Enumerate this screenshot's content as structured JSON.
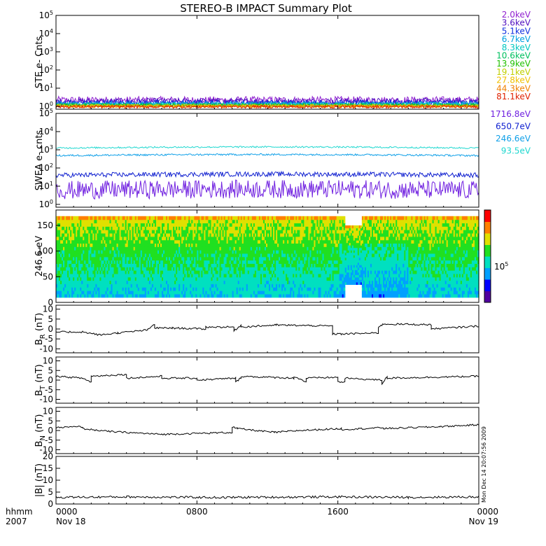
{
  "figure": {
    "title": "STEREO-B IMPACT Summary Plot",
    "stamp": "Mon Dec 14 20:07:56 2009",
    "time_row_label": "hhmm",
    "year_label": "2007",
    "time_ticks": [
      "0000",
      "0800",
      "1600",
      "0000"
    ],
    "date_ticks": [
      "Nov 18",
      "",
      "",
      "Nov 19"
    ]
  },
  "chart_data": [
    {
      "type": "line",
      "ylabel": "STE e- Cnts",
      "yscale": "log",
      "ylim": [
        0.7,
        100000
      ],
      "yticks": [
        {
          "base": "10",
          "exp": "0"
        },
        {
          "base": "10",
          "exp": "1"
        },
        {
          "base": "10",
          "exp": "2"
        },
        {
          "base": "10",
          "exp": "3"
        },
        {
          "base": "10",
          "exp": "4"
        },
        {
          "base": "10",
          "exp": "5"
        }
      ],
      "series": [
        {
          "name": "2.0keV",
          "color": "#9020d0",
          "level": 2.2,
          "spread": 1.6
        },
        {
          "name": "3.6keV",
          "color": "#5010c0",
          "level": 1.9,
          "spread": 1.5
        },
        {
          "name": "5.1keV",
          "color": "#1030e0",
          "level": 1.6,
          "spread": 1.4
        },
        {
          "name": "6.7keV",
          "color": "#00a0e0",
          "level": 1.4,
          "spread": 1.3
        },
        {
          "name": "8.3keV",
          "color": "#00c8c0",
          "level": 1.3,
          "spread": 1.3
        },
        {
          "name": "10.6keV",
          "color": "#00c060",
          "level": 1.2,
          "spread": 1.25
        },
        {
          "name": "13.9keV",
          "color": "#20c000",
          "level": 1.15,
          "spread": 1.2
        },
        {
          "name": "19.1keV",
          "color": "#c0d000",
          "level": 1.1,
          "spread": 1.2
        },
        {
          "name": "27.8keV",
          "color": "#f0c000",
          "level": 1.05,
          "spread": 1.2
        },
        {
          "name": "44.3keV",
          "color": "#f08000",
          "level": 1.0,
          "spread": 1.2
        },
        {
          "name": "81.1keV",
          "color": "#e02000",
          "level": 0.95,
          "spread": 1.2
        }
      ]
    },
    {
      "type": "line",
      "ylabel": "SWEA e- cnts",
      "yscale": "log",
      "ylim": [
        0.7,
        100000
      ],
      "yticks": [
        {
          "base": "10",
          "exp": "0"
        },
        {
          "base": "10",
          "exp": "1"
        },
        {
          "base": "10",
          "exp": "2"
        },
        {
          "base": "10",
          "exp": "3"
        },
        {
          "base": "10",
          "exp": "4"
        },
        {
          "base": "10",
          "exp": "5"
        }
      ],
      "series": [
        {
          "name": "1716.8eV",
          "color": "#7020e0",
          "level": 6,
          "spread": 3.2
        },
        {
          "name": "650.7eV",
          "color": "#1020d0",
          "level": 40,
          "spread": 1.35
        },
        {
          "name": "246.6eV",
          "color": "#10a0e8",
          "level": 480,
          "spread": 1.12
        },
        {
          "name": "93.5eV",
          "color": "#20d8d0",
          "level": 1250,
          "spread": 1.1
        }
      ]
    },
    {
      "type": "heatmap",
      "ylabel": "246.6 eV",
      "ylim": [
        0,
        180
      ],
      "yticks": [
        "0",
        "50",
        "100",
        "150"
      ],
      "colorbar_tick": {
        "base": "10",
        "exp": "5"
      },
      "colorscale": [
        "#5000a0",
        "#0000ff",
        "#00a0ff",
        "#00e0c0",
        "#20e020",
        "#e0e000",
        "#ff8000",
        "#ff0000"
      ]
    },
    {
      "type": "line",
      "ylabel": {
        "main": "B",
        "sub": "R",
        "unit": " (nT)"
      },
      "ylim": [
        -12,
        12
      ],
      "yticks": [
        "-10",
        "-5",
        "0",
        "5",
        "10"
      ],
      "segments": [
        {
          "x": [
            0,
            1.5
          ],
          "y": [
            -1.5,
            -1.5
          ]
        },
        {
          "x": [
            1.5,
            2.5
          ],
          "y": [
            -1.5,
            -3
          ]
        },
        {
          "x": [
            2.5,
            3.5
          ],
          "y": [
            -3,
            -2
          ]
        },
        {
          "x": [
            3.5,
            5.2
          ],
          "y": [
            -2,
            -0.5
          ]
        },
        {
          "x": [
            5.2,
            5.6
          ],
          "y": [
            -0.5,
            2.5
          ]
        },
        {
          "x": [
            5.6,
            6.6
          ],
          "y": [
            0.5,
            0.5
          ]
        },
        {
          "x": [
            6.6,
            8.5
          ],
          "y": [
            0.5,
            0
          ]
        },
        {
          "x": [
            8.5,
            10.1
          ],
          "y": [
            1,
            1
          ]
        },
        {
          "x": [
            10.1,
            10.5
          ],
          "y": [
            -1,
            2
          ]
        },
        {
          "x": [
            10.5,
            12.5
          ],
          "y": [
            1,
            2
          ]
        },
        {
          "x": [
            12.5,
            15.7
          ],
          "y": [
            2,
            1.5
          ]
        },
        {
          "x": [
            15.7,
            16.2
          ],
          "y": [
            -2.5,
            -2.5
          ]
        },
        {
          "x": [
            16.2,
            18.3
          ],
          "y": [
            -2.5,
            -2
          ]
        },
        {
          "x": [
            18.3,
            18.6
          ],
          "y": [
            1,
            2.5
          ]
        },
        {
          "x": [
            18.6,
            21.3
          ],
          "y": [
            2.5,
            2.2
          ]
        },
        {
          "x": [
            21.3,
            24
          ],
          "y": [
            0,
            1.5
          ]
        }
      ]
    },
    {
      "type": "line",
      "ylabel": {
        "main": "B",
        "sub": "T",
        "unit": " (nT)"
      },
      "ylim": [
        -12,
        12
      ],
      "yticks": [
        "-10",
        "-5",
        "0",
        "5",
        "10"
      ],
      "segments": [
        {
          "x": [
            0,
            1.5
          ],
          "y": [
            2,
            1
          ]
        },
        {
          "x": [
            1.5,
            2
          ],
          "y": [
            1,
            -1
          ]
        },
        {
          "x": [
            2,
            4
          ],
          "y": [
            2,
            3
          ]
        },
        {
          "x": [
            4,
            6
          ],
          "y": [
            1,
            2
          ]
        },
        {
          "x": [
            6,
            8
          ],
          "y": [
            1,
            1
          ]
        },
        {
          "x": [
            8,
            10.2
          ],
          "y": [
            0,
            1
          ]
        },
        {
          "x": [
            10.2,
            10.5
          ],
          "y": [
            -1,
            1
          ]
        },
        {
          "x": [
            10.5,
            13.5
          ],
          "y": [
            2,
            1
          ]
        },
        {
          "x": [
            13.5,
            14.2
          ],
          "y": [
            2,
            -1
          ]
        },
        {
          "x": [
            14.2,
            16
          ],
          "y": [
            1,
            1.5
          ]
        },
        {
          "x": [
            16,
            16.4
          ],
          "y": [
            -1,
            -1
          ]
        },
        {
          "x": [
            16.4,
            18.5
          ],
          "y": [
            1,
            0
          ]
        },
        {
          "x": [
            18.5,
            18.8
          ],
          "y": [
            -2,
            2
          ]
        },
        {
          "x": [
            18.8,
            24
          ],
          "y": [
            1,
            2
          ]
        }
      ]
    },
    {
      "type": "line",
      "ylabel": {
        "main": "B",
        "sub": "N",
        "unit": " (nT)"
      },
      "ylim": [
        -12,
        12
      ],
      "yticks": [
        "-10",
        "-5",
        "0",
        "5",
        "10"
      ],
      "segments": [
        {
          "x": [
            0,
            1.5
          ],
          "y": [
            1.5,
            2
          ]
        },
        {
          "x": [
            1.5,
            3
          ],
          "y": [
            1,
            -0.5
          ]
        },
        {
          "x": [
            3,
            6
          ],
          "y": [
            -0.5,
            -2
          ]
        },
        {
          "x": [
            6,
            10
          ],
          "y": [
            -2,
            -1
          ]
        },
        {
          "x": [
            10,
            10.3
          ],
          "y": [
            2,
            1
          ]
        },
        {
          "x": [
            10.3,
            12.4
          ],
          "y": [
            1,
            -1
          ]
        },
        {
          "x": [
            12.4,
            13.8
          ],
          "y": [
            -1,
            0
          ]
        },
        {
          "x": [
            13.8,
            16.2
          ],
          "y": [
            0,
            1
          ]
        },
        {
          "x": [
            16.2,
            18.6
          ],
          "y": [
            0.5,
            1.5
          ]
        },
        {
          "x": [
            18.6,
            21.8
          ],
          "y": [
            1,
            2
          ]
        },
        {
          "x": [
            21.8,
            24
          ],
          "y": [
            2,
            3
          ]
        }
      ]
    },
    {
      "type": "line",
      "ylabel": {
        "main": "|B|",
        "sub": "",
        "unit": " (nT)"
      },
      "ylim": [
        0,
        20
      ],
      "yticks": [
        "0",
        "5",
        "10",
        "15",
        "20"
      ],
      "segments": [
        {
          "x": [
            0,
            4
          ],
          "y": [
            2.8,
            3
          ]
        },
        {
          "x": [
            4,
            10
          ],
          "y": [
            3,
            2.7
          ]
        },
        {
          "x": [
            10,
            16
          ],
          "y": [
            2.8,
            3
          ]
        },
        {
          "x": [
            16,
            20
          ],
          "y": [
            3,
            2.8
          ]
        },
        {
          "x": [
            20,
            24
          ],
          "y": [
            2.8,
            3
          ]
        }
      ]
    }
  ]
}
